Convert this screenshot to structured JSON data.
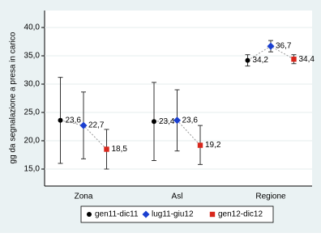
{
  "chart_data": {
    "type": "errorbar",
    "y_label": "gg da segnalazione a presa in carico",
    "categories": [
      "Zona",
      "Asl",
      "Regione"
    ],
    "series": [
      {
        "name": "gen11-dic11",
        "color": "#000000",
        "marker": "circle",
        "values": [
          23.6,
          23.4,
          34.2
        ],
        "value_labels": [
          "23,6",
          "23,4",
          "34,2"
        ],
        "lower": [
          16,
          16.5,
          33.2
        ],
        "upper": [
          31.2,
          30.3,
          35.2
        ]
      },
      {
        "name": "lug11-giu12",
        "color": "#1a3fd0",
        "marker": "diamond",
        "values": [
          22.7,
          23.6,
          36.7
        ],
        "value_labels": [
          "22,7",
          "23,6",
          "36,7"
        ],
        "lower": [
          16.8,
          18.2,
          35.7
        ],
        "upper": [
          28.6,
          29,
          37.7
        ]
      },
      {
        "name": "gen12-dic12",
        "color": "#d8271c",
        "marker": "square",
        "values": [
          18.5,
          19.2,
          34.4
        ],
        "value_labels": [
          "18,5",
          "19,2",
          "34,4"
        ],
        "lower": [
          15,
          15.8,
          33.6
        ],
        "upper": [
          22,
          22.7,
          35.2
        ]
      }
    ],
    "ylim": [
      12,
      43
    ],
    "yticks": [
      {
        "value": 15,
        "label": "15,0"
      },
      {
        "value": 20,
        "label": "20,0"
      },
      {
        "value": 25,
        "label": "25,0"
      },
      {
        "value": 30,
        "label": "30,0"
      },
      {
        "value": 35,
        "label": "35,0"
      },
      {
        "value": 40,
        "label": "40,0"
      }
    ],
    "grid": true,
    "legend": "bottom"
  }
}
